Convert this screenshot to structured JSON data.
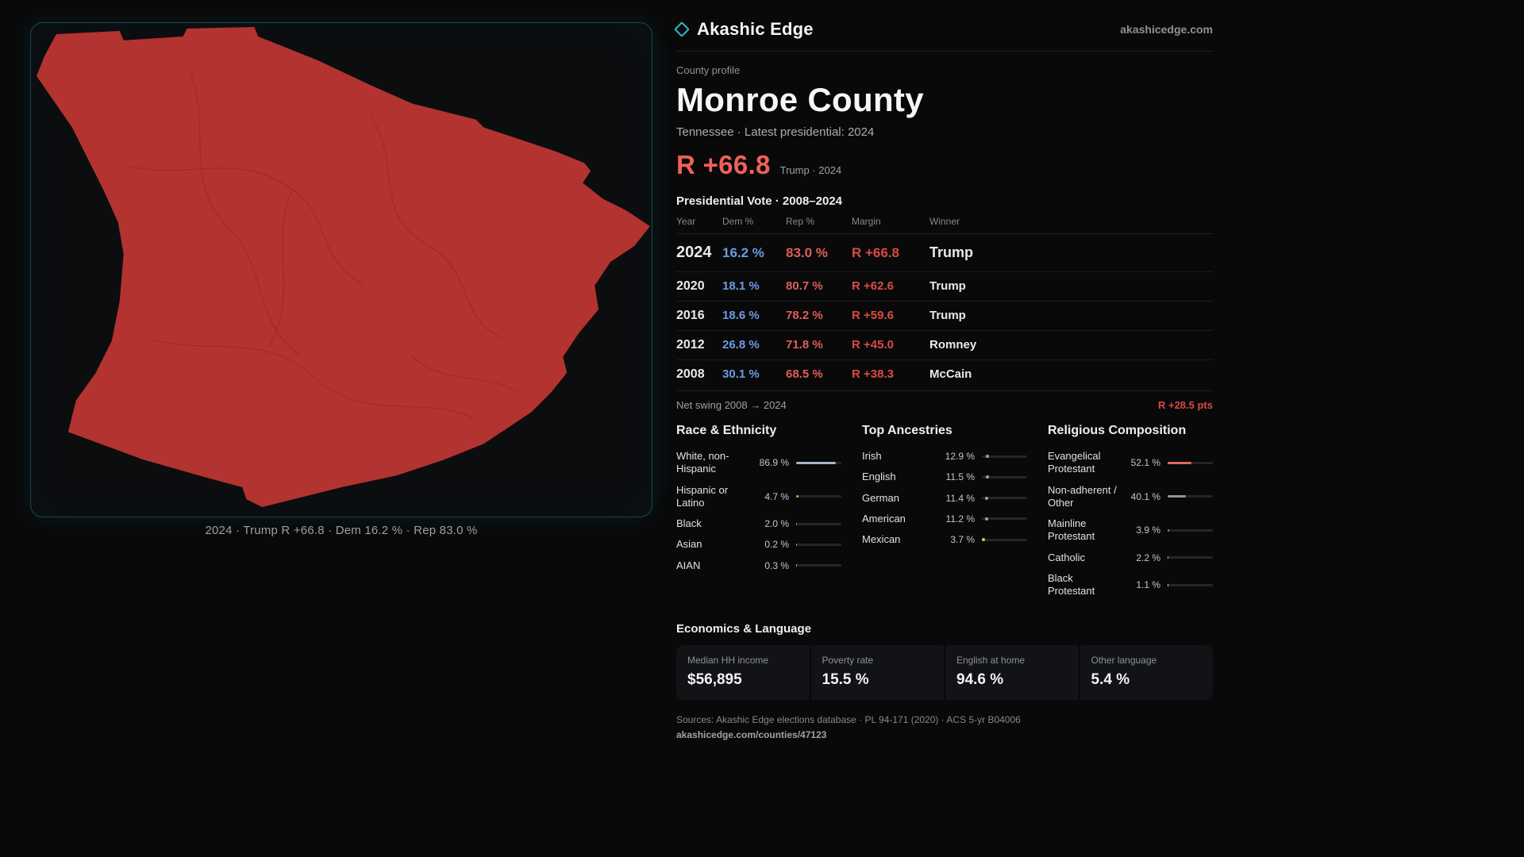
{
  "header": {
    "brand": "Akashic Edge",
    "domain": "akashicedge.com"
  },
  "colors": {
    "accent_teal": "#2bbfd0",
    "county_fill": "#b23330",
    "dem_blue": "#6b9be6",
    "rep_red": "#dd5f57",
    "margin_red": "#d94b44",
    "headline_red": "#ee6157"
  },
  "map": {
    "caption": "2024 · Trump R +66.8 · Dem 16.2 % · Rep 83.0 %"
  },
  "profile": {
    "kicker": "County profile",
    "title": "Monroe County",
    "subtitle": "Tennessee · Latest presidential: 2024",
    "margin": "R +66.8",
    "margin_note": "Trump · 2024"
  },
  "vote_table": {
    "title": "Presidential Vote · 2008–2024",
    "headers": [
      "Year",
      "Dem %",
      "Rep %",
      "Margin",
      "Winner"
    ],
    "rows": [
      {
        "year": "2024",
        "dem": "16.2 %",
        "rep": "83.0 %",
        "margin": "R +66.8",
        "winner": "Trump"
      },
      {
        "year": "2020",
        "dem": "18.1 %",
        "rep": "80.7 %",
        "margin": "R +62.6",
        "winner": "Trump"
      },
      {
        "year": "2016",
        "dem": "18.6 %",
        "rep": "78.2 %",
        "margin": "R +59.6",
        "winner": "Trump"
      },
      {
        "year": "2012",
        "dem": "26.8 %",
        "rep": "71.8 %",
        "margin": "R +45.0",
        "winner": "Romney"
      },
      {
        "year": "2008",
        "dem": "30.1 %",
        "rep": "68.5 %",
        "margin": "R +38.3",
        "winner": "McCain"
      }
    ],
    "net_swing_label": "Net swing 2008 → 2024",
    "net_swing_value": "R +28.5 pts"
  },
  "race": {
    "title": "Race & Ethnicity",
    "rows": [
      {
        "label": "White, non-Hispanic",
        "value": "86.9 %",
        "pct": 86.9,
        "color": "#a9b5c7"
      },
      {
        "label": "Hispanic or Latino",
        "value": "4.7 %",
        "pct": 4.7,
        "color": "#e2a23f"
      },
      {
        "label": "Black",
        "value": "2.0 %",
        "pct": 2.0,
        "color": "#5d82e0"
      },
      {
        "label": "Asian",
        "value": "0.2 %",
        "pct": 0.2,
        "color": "#8d949c"
      },
      {
        "label": "AIAN",
        "value": "0.3 %",
        "pct": 0.3,
        "color": "#e2a23f"
      }
    ]
  },
  "ancestries": {
    "title": "Top Ancestries",
    "rows": [
      {
        "label": "Irish",
        "value": "12.9 %",
        "pct": 12.9,
        "color": "#9aa3ad"
      },
      {
        "label": "English",
        "value": "11.5 %",
        "pct": 11.5,
        "color": "#9aa3ad"
      },
      {
        "label": "German",
        "value": "11.4 %",
        "pct": 11.4,
        "color": "#9aa3ad"
      },
      {
        "label": "American",
        "value": "11.2 %",
        "pct": 11.2,
        "color": "#9aa3ad"
      },
      {
        "label": "Mexican",
        "value": "3.7 %",
        "pct": 3.7,
        "color": "#dcc14d"
      }
    ]
  },
  "religion": {
    "title": "Religious Composition",
    "rows": [
      {
        "label": "Evangelical Protestant",
        "value": "52.1 %",
        "pct": 52.1,
        "color": "#e06a63"
      },
      {
        "label": "Non-adherent / Other",
        "value": "40.1 %",
        "pct": 40.1,
        "color": "#8d949c"
      },
      {
        "label": "Mainline Protestant",
        "value": "3.9 %",
        "pct": 3.9,
        "color": "#5d82e0"
      },
      {
        "label": "Catholic",
        "value": "2.2 %",
        "pct": 2.2,
        "color": "#dcc14d"
      },
      {
        "label": "Black Protestant",
        "value": "1.1 %",
        "pct": 1.1,
        "color": "#cfd3d8"
      }
    ]
  },
  "economics": {
    "title": "Economics & Language",
    "stats": [
      {
        "label": "Median HH income",
        "value": "$56,895"
      },
      {
        "label": "Poverty rate",
        "value": "15.5 %"
      },
      {
        "label": "English at home",
        "value": "94.6 %"
      },
      {
        "label": "Other language",
        "value": "5.4 %"
      }
    ]
  },
  "footer": {
    "sources": "Sources: Akashic Edge elections database · PL 94-171 (2020) · ACS 5-yr B04006",
    "permalink": "akashicedge.com/counties/47123"
  }
}
